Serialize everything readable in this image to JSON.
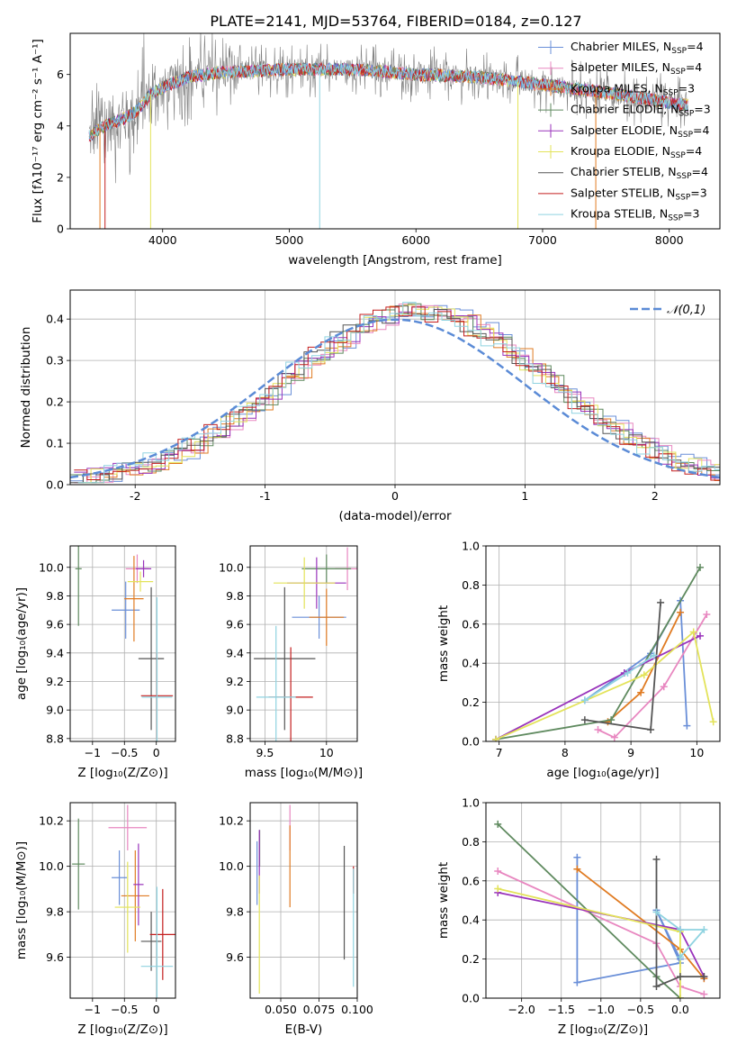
{
  "figure": {
    "title": "PLATE=2141, MJD=53764, FIBERID=0184, z=0.127"
  },
  "legend": [
    {
      "label": "Chabrier MILES, N",
      "sub": "SSP",
      "suffix": "=4",
      "color": "#6a8fd8"
    },
    {
      "label": "Salpeter MILES, N",
      "sub": "SSP",
      "suffix": "=4",
      "color": "#e887c0"
    },
    {
      "label": "Kroupa MILES, N",
      "sub": "SSP",
      "suffix": "=3",
      "color": "#e07b22"
    },
    {
      "label": "Chabrier ELODIE, N",
      "sub": "SSP",
      "suffix": "=3",
      "color": "#5f8a5f"
    },
    {
      "label": "Salpeter ELODIE, N",
      "sub": "SSP",
      "suffix": "=4",
      "color": "#9933bb"
    },
    {
      "label": "Kroupa ELODIE, N",
      "sub": "SSP",
      "suffix": "=4",
      "color": "#e3e35a"
    },
    {
      "label": "Chabrier STELIB, N",
      "sub": "SSP",
      "suffix": "=4",
      "color": "#555555"
    },
    {
      "label": "Salpeter STELIB, N",
      "sub": "SSP",
      "suffix": "=3",
      "color": "#c41e1e"
    },
    {
      "label": "Kroupa STELIB, N",
      "sub": "SSP",
      "suffix": "=3",
      "color": "#8fd3e0"
    }
  ],
  "chart_data": [
    {
      "type": "line",
      "id": "spectrum",
      "xlabel": "wavelength [Angstrom, rest frame]",
      "ylabel": "Flux [fλ10⁻¹⁷ erg cm⁻² s⁻¹ A⁻¹]",
      "xlim": [
        3270,
        8400
      ],
      "ylim": [
        0,
        7.6
      ],
      "xticks": [
        4000,
        5000,
        6000,
        7000,
        8000
      ],
      "yticks": [
        0,
        2,
        4,
        6
      ],
      "continuum": {
        "x": [
          3420,
          3500,
          3600,
          3700,
          3800,
          3900,
          4000,
          4200,
          4500,
          5000,
          5500,
          6000,
          6500,
          7000,
          7500,
          8000,
          8150
        ],
        "y": [
          3.6,
          3.9,
          4.1,
          4.3,
          4.6,
          5.2,
          5.5,
          5.9,
          6.1,
          6.2,
          6.2,
          6.0,
          5.9,
          5.6,
          5.3,
          4.9,
          4.8
        ]
      }
    },
    {
      "type": "line",
      "id": "residual-distribution",
      "xlabel": "(data-model)/error",
      "ylabel": "Normed distribution",
      "xlim": [
        -2.5,
        2.5
      ],
      "ylim": [
        0,
        0.47
      ],
      "xticks": [
        -2,
        -1,
        0,
        1,
        2
      ],
      "yticks": [
        0.0,
        0.1,
        0.2,
        0.3,
        0.4
      ],
      "gaussian_label": "𝒩(0,1)",
      "gaussian_color": "#5b8bd6"
    },
    {
      "type": "scatter",
      "id": "age-vs-z",
      "xlabel": "Z [log₁₀(Z/Z⊙)]",
      "ylabel": "age  [log₁₀(age/yr)]",
      "xlim": [
        -1.35,
        0.3
      ],
      "ylim": [
        8.78,
        10.15
      ],
      "xticks": [
        -1,
        -0.5,
        0
      ],
      "xticklabels": [
        "−1",
        "−0.5",
        "0"
      ],
      "yticks": [
        8.8,
        9.0,
        9.2,
        9.4,
        9.6,
        9.8,
        10.0
      ],
      "points": [
        {
          "x": -0.48,
          "y": 9.7,
          "xerr": 0.22,
          "yerr": 0.2
        },
        {
          "x": -0.3,
          "y": 9.99,
          "xerr": 0.18,
          "yerr": 0.1
        },
        {
          "x": -0.35,
          "y": 9.78,
          "xerr": 0.15,
          "yerr": 0.3
        },
        {
          "x": -1.22,
          "y": 9.99,
          "xerr": 0.05,
          "yerr": 0.4
        },
        {
          "x": -0.2,
          "y": 9.99,
          "xerr": 0.12,
          "yerr": 0.06
        },
        {
          "x": -0.25,
          "y": 9.9,
          "xerr": 0.2,
          "yerr": 0.07
        },
        {
          "x": -0.08,
          "y": 9.36,
          "xerr": 0.2,
          "yerr": 0.5
        },
        {
          "x": 0.01,
          "y": 9.1,
          "xerr": 0.25,
          "yerr": 0.3
        },
        {
          "x": 0.01,
          "y": 9.09,
          "xerr": 0.24,
          "yerr": 0.7
        }
      ]
    },
    {
      "type": "scatter",
      "id": "age-vs-mass",
      "xlabel": "mass [log₁₀(M/M⊙)]",
      "ylabel": "",
      "xlim": [
        9.38,
        10.25
      ],
      "ylim": [
        8.78,
        10.15
      ],
      "xticks": [
        9.5,
        10.0
      ],
      "yticks": [
        8.8,
        9.0,
        9.2,
        9.4,
        9.6,
        9.8,
        10.0
      ],
      "points": [
        {
          "x": 9.94,
          "y": 9.65,
          "xerr": 0.22,
          "yerr": 0.15
        },
        {
          "x": 10.17,
          "y": 9.99,
          "xerr": 0.1,
          "yerr": 0.15
        },
        {
          "x": 10.0,
          "y": 9.65,
          "xerr": 0.14,
          "yerr": 0.2
        },
        {
          "x": 10.0,
          "y": 9.99,
          "xerr": 0.2,
          "yerr": 0.1
        },
        {
          "x": 9.92,
          "y": 9.89,
          "xerr": 0.24,
          "yerr": 0.18
        },
        {
          "x": 9.82,
          "y": 9.89,
          "xerr": 0.25,
          "yerr": 0.18
        },
        {
          "x": 9.66,
          "y": 9.36,
          "xerr": 0.25,
          "yerr": 0.5
        },
        {
          "x": 9.71,
          "y": 9.09,
          "xerr": 0.18,
          "yerr": 0.35
        },
        {
          "x": 9.59,
          "y": 9.09,
          "xerr": 0.16,
          "yerr": 0.5
        }
      ]
    },
    {
      "type": "line",
      "id": "mass-weight-vs-age",
      "xlabel": "age  [log₁₀(age/yr)]",
      "ylabel": "mass weight",
      "xlim": [
        6.8,
        10.35
      ],
      "ylim": [
        0,
        1.0
      ],
      "xticks": [
        7,
        8,
        9,
        10
      ],
      "yticks": [
        0.0,
        0.2,
        0.4,
        0.6,
        0.8,
        1.0
      ],
      "series": [
        {
          "color": "#6a8fd8",
          "x": [
            8.3,
            9.3,
            9.75,
            9.85
          ],
          "y": [
            0.21,
            0.45,
            0.72,
            0.08
          ]
        },
        {
          "color": "#e887c0",
          "x": [
            8.5,
            8.75,
            9.5,
            10.15
          ],
          "y": [
            0.06,
            0.02,
            0.28,
            0.65
          ]
        },
        {
          "color": "#e07b22",
          "x": [
            8.65,
            9.15,
            9.75
          ],
          "y": [
            0.1,
            0.25,
            0.66
          ]
        },
        {
          "color": "#5f8a5f",
          "x": [
            6.95,
            8.7,
            10.05
          ],
          "y": [
            0.01,
            0.11,
            0.89
          ]
        },
        {
          "color": "#9933bb",
          "x": [
            6.95,
            8.9,
            10.05
          ],
          "y": [
            0.01,
            0.35,
            0.54
          ]
        },
        {
          "color": "#e3e35a",
          "x": [
            6.95,
            9.2,
            9.95,
            10.25
          ],
          "y": [
            0.01,
            0.34,
            0.56,
            0.1
          ]
        },
        {
          "color": "#555555",
          "x": [
            8.3,
            9.3,
            9.45
          ],
          "y": [
            0.11,
            0.06,
            0.71
          ]
        },
        {
          "color": "#8fd3e0",
          "x": [
            8.3,
            8.95,
            9.35
          ],
          "y": [
            0.21,
            0.35,
            0.44
          ]
        }
      ]
    },
    {
      "type": "scatter",
      "id": "mass-vs-z",
      "xlabel": "Z [log₁₀(Z/Z⊙)]",
      "ylabel": "mass [log₁₀(M/M⊙)]",
      "xlim": [
        -1.35,
        0.3
      ],
      "ylim": [
        9.42,
        10.28
      ],
      "xticks": [
        -1,
        -0.5,
        0
      ],
      "xticklabels": [
        "−1",
        "−0.5",
        "0"
      ],
      "yticks": [
        9.6,
        9.8,
        10.0,
        10.2
      ],
      "points": [
        {
          "x": -0.58,
          "y": 9.95,
          "xerr": 0.12,
          "yerr": 0.12
        },
        {
          "x": -0.45,
          "y": 10.17,
          "xerr": 0.3,
          "yerr": 0.1
        },
        {
          "x": -0.33,
          "y": 9.87,
          "xerr": 0.22,
          "yerr": 0.2
        },
        {
          "x": -1.22,
          "y": 10.01,
          "xerr": 0.1,
          "yerr": 0.2
        },
        {
          "x": -0.28,
          "y": 9.92,
          "xerr": 0.08,
          "yerr": 0.18
        },
        {
          "x": -0.45,
          "y": 9.82,
          "xerr": 0.2,
          "yerr": 0.2
        },
        {
          "x": -0.08,
          "y": 9.67,
          "xerr": 0.16,
          "yerr": 0.13
        },
        {
          "x": 0.1,
          "y": 9.7,
          "xerr": 0.2,
          "yerr": 0.2
        },
        {
          "x": 0.01,
          "y": 9.56,
          "xerr": 0.25,
          "yerr": 0.35
        }
      ]
    },
    {
      "type": "scatter",
      "id": "mass-vs-ebv",
      "xlabel": "E(B-V)",
      "ylabel": "",
      "xlim": [
        0.03,
        0.1
      ],
      "ylim": [
        9.42,
        10.28
      ],
      "xticks": [
        0.05,
        0.075,
        0.1
      ],
      "xticklabels": [
        "0.050",
        "0.075",
        "0.100"
      ],
      "yticks": [
        9.6,
        9.8,
        10.0,
        10.2
      ],
      "points": [
        {
          "x": 0.0345,
          "y": 9.97,
          "yerr": 0.14
        },
        {
          "x": 0.056,
          "y": 10.17,
          "yerr": 0.1
        },
        {
          "x": 0.056,
          "y": 10.0,
          "yerr": 0.18
        },
        {
          "x": 0.0362,
          "y": 10.08,
          "yerr": 0.08
        },
        {
          "x": 0.036,
          "y": 10.02,
          "yerr": 0.14
        },
        {
          "x": 0.036,
          "y": 9.7,
          "yerr": 0.26
        },
        {
          "x": 0.0915,
          "y": 9.84,
          "yerr": 0.25
        },
        {
          "x": 0.0975,
          "y": 9.94,
          "yerr": 0.06
        },
        {
          "x": 0.0975,
          "y": 9.73,
          "yerr": 0.26
        }
      ]
    },
    {
      "type": "line",
      "id": "mass-weight-vs-z",
      "xlabel": "Z [log₁₀(Z/Z⊙)]",
      "ylabel": "mass weight",
      "xlim": [
        -2.45,
        0.5
      ],
      "ylim": [
        0,
        1.0
      ],
      "xticks": [
        -2.0,
        -1.5,
        -1.0,
        -0.5,
        0.0
      ],
      "xticklabels": [
        "−2.0",
        "−1.5",
        "−1.0",
        "−0.5",
        "0.0"
      ],
      "yticks": [
        0.0,
        0.2,
        0.4,
        0.6,
        0.8,
        1.0
      ],
      "series": [
        {
          "color": "#6a8fd8",
          "x": [
            -1.3,
            -1.3,
            0.0,
            -0.3,
            0.0
          ],
          "y": [
            0.72,
            0.08,
            0.18,
            0.45,
            0.2
          ]
        },
        {
          "color": "#e887c0",
          "x": [
            -2.3,
            -0.3,
            0.0,
            0.3
          ],
          "y": [
            0.65,
            0.28,
            0.06,
            0.02
          ]
        },
        {
          "color": "#e07b22",
          "x": [
            -1.3,
            0.0,
            0.3
          ],
          "y": [
            0.66,
            0.25,
            0.1
          ]
        },
        {
          "color": "#5f8a5f",
          "x": [
            -2.3,
            -0.3,
            0.0
          ],
          "y": [
            0.89,
            0.11,
            0.0
          ]
        },
        {
          "color": "#9933bb",
          "x": [
            -2.3,
            0.0,
            0.3
          ],
          "y": [
            0.54,
            0.35,
            0.11
          ]
        },
        {
          "color": "#e3e35a",
          "x": [
            -2.3,
            0.0,
            0.0
          ],
          "y": [
            0.56,
            0.34,
            0.0
          ]
        },
        {
          "color": "#555555",
          "x": [
            -0.3,
            -0.3,
            0.0,
            0.3
          ],
          "y": [
            0.71,
            0.06,
            0.11,
            0.11
          ]
        },
        {
          "color": "#8fd3e0",
          "x": [
            -0.3,
            0.0,
            0.3,
            0.0
          ],
          "y": [
            0.44,
            0.35,
            0.35,
            0.21
          ]
        }
      ]
    }
  ]
}
